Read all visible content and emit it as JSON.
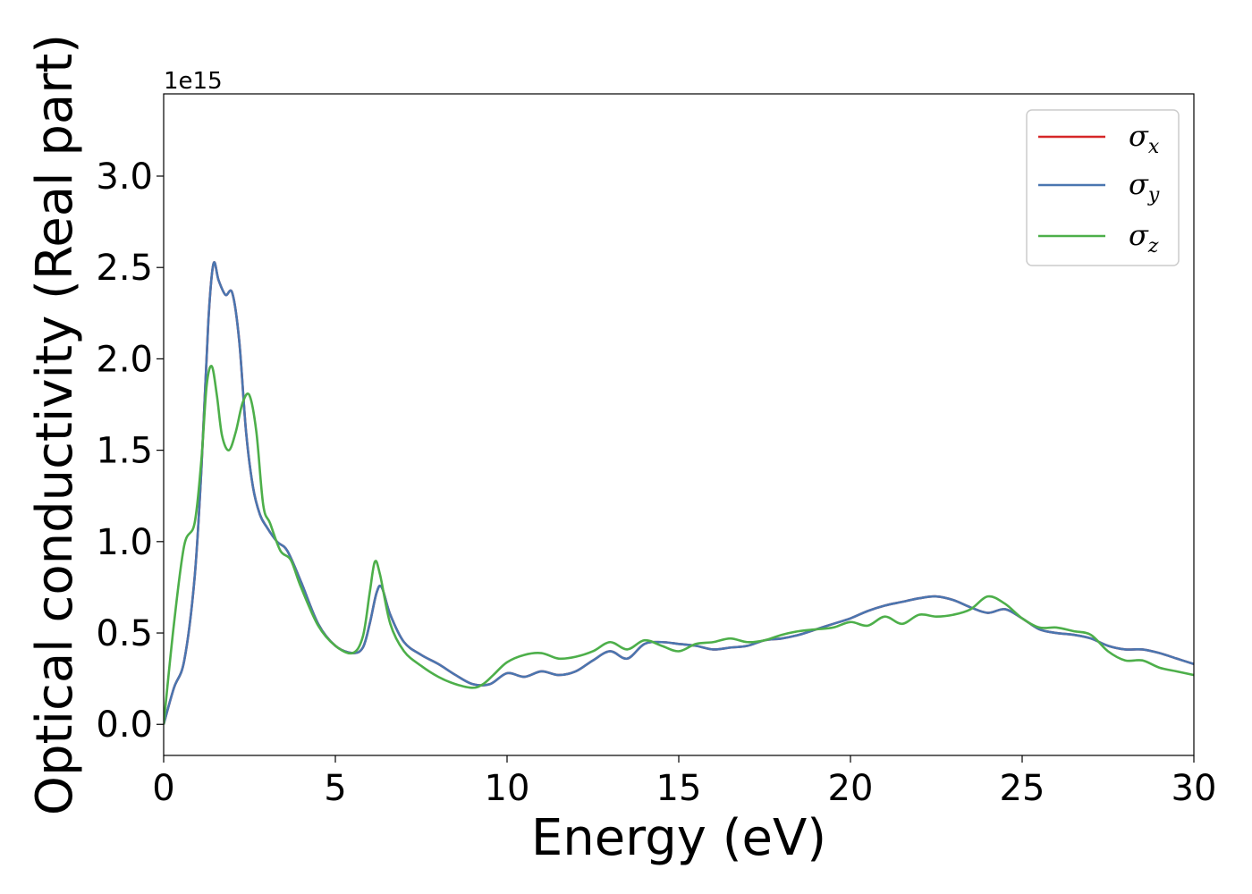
{
  "chart_data": {
    "type": "line",
    "title": "",
    "xlabel": "Energy (eV)",
    "ylabel": "Optical conductivity (Real part)",
    "offset_text": "1e15",
    "xlim": [
      0,
      30
    ],
    "ylim": [
      -0.17,
      3.45
    ],
    "x_ticks": [
      0,
      5,
      10,
      15,
      20,
      25,
      30
    ],
    "x_tick_labels": [
      "0",
      "5",
      "10",
      "15",
      "20",
      "25",
      "30"
    ],
    "y_ticks": [
      0.0,
      0.5,
      1.0,
      1.5,
      2.0,
      2.5,
      3.0
    ],
    "y_tick_labels": [
      "0.0",
      "0.5",
      "1.0",
      "1.5",
      "2.0",
      "2.5",
      "3.0"
    ],
    "grid": false,
    "legend": {
      "position": "top-right"
    },
    "series": [
      {
        "name": "σ",
        "subscript": "x",
        "color": "#d62728",
        "x": [
          0,
          0.3,
          0.6,
          0.9,
          1.1,
          1.3,
          1.45,
          1.6,
          1.8,
          2.0,
          2.2,
          2.4,
          2.6,
          2.8,
          3.0,
          3.3,
          3.6,
          4.0,
          4.5,
          5.0,
          5.5,
          5.8,
          6.0,
          6.2,
          6.35,
          6.6,
          7.0,
          7.5,
          8.0,
          8.5,
          9.0,
          9.5,
          10.0,
          10.5,
          11.0,
          11.5,
          12.0,
          12.5,
          13.0,
          13.5,
          14.0,
          14.5,
          15.0,
          15.5,
          16.0,
          16.5,
          17.0,
          17.5,
          18.0,
          18.5,
          19.0,
          19.5,
          20.0,
          20.5,
          21.0,
          21.5,
          22.0,
          22.5,
          23.0,
          23.5,
          24.0,
          24.5,
          25.0,
          25.5,
          26.0,
          26.5,
          27.0,
          27.5,
          28.0,
          28.5,
          29.0,
          29.5,
          30.0
        ],
        "y": [
          0.0,
          0.2,
          0.35,
          0.8,
          1.4,
          2.2,
          2.52,
          2.43,
          2.35,
          2.36,
          2.1,
          1.6,
          1.3,
          1.15,
          1.08,
          1.0,
          0.95,
          0.78,
          0.55,
          0.43,
          0.39,
          0.42,
          0.55,
          0.72,
          0.75,
          0.6,
          0.45,
          0.38,
          0.33,
          0.27,
          0.22,
          0.22,
          0.28,
          0.26,
          0.29,
          0.27,
          0.29,
          0.35,
          0.4,
          0.36,
          0.44,
          0.45,
          0.44,
          0.43,
          0.41,
          0.42,
          0.43,
          0.46,
          0.47,
          0.49,
          0.52,
          0.55,
          0.58,
          0.62,
          0.65,
          0.67,
          0.69,
          0.7,
          0.68,
          0.64,
          0.61,
          0.63,
          0.58,
          0.52,
          0.5,
          0.49,
          0.47,
          0.43,
          0.41,
          0.41,
          0.39,
          0.36,
          0.33
        ]
      },
      {
        "name": "σ",
        "subscript": "y",
        "color": "#4a76b0",
        "x": [
          0,
          0.3,
          0.6,
          0.9,
          1.1,
          1.3,
          1.45,
          1.6,
          1.8,
          2.0,
          2.2,
          2.4,
          2.6,
          2.8,
          3.0,
          3.3,
          3.6,
          4.0,
          4.5,
          5.0,
          5.5,
          5.8,
          6.0,
          6.2,
          6.35,
          6.6,
          7.0,
          7.5,
          8.0,
          8.5,
          9.0,
          9.5,
          10.0,
          10.5,
          11.0,
          11.5,
          12.0,
          12.5,
          13.0,
          13.5,
          14.0,
          14.5,
          15.0,
          15.5,
          16.0,
          16.5,
          17.0,
          17.5,
          18.0,
          18.5,
          19.0,
          19.5,
          20.0,
          20.5,
          21.0,
          21.5,
          22.0,
          22.5,
          23.0,
          23.5,
          24.0,
          24.5,
          25.0,
          25.5,
          26.0,
          26.5,
          27.0,
          27.5,
          28.0,
          28.5,
          29.0,
          29.5,
          30.0
        ],
        "y": [
          0.0,
          0.2,
          0.35,
          0.8,
          1.4,
          2.2,
          2.52,
          2.43,
          2.35,
          2.36,
          2.1,
          1.6,
          1.3,
          1.15,
          1.08,
          1.0,
          0.95,
          0.78,
          0.55,
          0.43,
          0.39,
          0.42,
          0.55,
          0.72,
          0.75,
          0.6,
          0.45,
          0.38,
          0.33,
          0.27,
          0.22,
          0.22,
          0.28,
          0.26,
          0.29,
          0.27,
          0.29,
          0.35,
          0.4,
          0.36,
          0.44,
          0.45,
          0.44,
          0.43,
          0.41,
          0.42,
          0.43,
          0.46,
          0.47,
          0.49,
          0.52,
          0.55,
          0.58,
          0.62,
          0.65,
          0.67,
          0.69,
          0.7,
          0.68,
          0.64,
          0.61,
          0.63,
          0.58,
          0.52,
          0.5,
          0.49,
          0.47,
          0.43,
          0.41,
          0.41,
          0.39,
          0.36,
          0.33
        ]
      },
      {
        "name": "σ",
        "subscript": "z",
        "color": "#4daf4a",
        "x": [
          0,
          0.3,
          0.6,
          0.9,
          1.1,
          1.25,
          1.4,
          1.55,
          1.7,
          1.9,
          2.1,
          2.3,
          2.5,
          2.7,
          2.9,
          3.1,
          3.4,
          3.7,
          4.0,
          4.5,
          5.0,
          5.5,
          5.8,
          6.0,
          6.15,
          6.3,
          6.6,
          7.0,
          7.5,
          8.0,
          8.5,
          9.0,
          9.3,
          9.6,
          10.0,
          10.5,
          11.0,
          11.5,
          12.0,
          12.5,
          13.0,
          13.5,
          14.0,
          14.5,
          15.0,
          15.5,
          16.0,
          16.5,
          17.0,
          17.5,
          18.0,
          18.5,
          19.0,
          19.5,
          20.0,
          20.5,
          21.0,
          21.5,
          22.0,
          22.5,
          23.0,
          23.5,
          24.0,
          24.5,
          25.0,
          25.5,
          26.0,
          26.5,
          27.0,
          27.5,
          28.0,
          28.5,
          29.0,
          29.5,
          30.0
        ],
        "y": [
          0.0,
          0.55,
          0.98,
          1.1,
          1.45,
          1.85,
          1.96,
          1.8,
          1.58,
          1.5,
          1.6,
          1.76,
          1.8,
          1.6,
          1.2,
          1.1,
          0.95,
          0.9,
          0.75,
          0.54,
          0.43,
          0.39,
          0.48,
          0.72,
          0.89,
          0.82,
          0.55,
          0.4,
          0.32,
          0.26,
          0.22,
          0.2,
          0.22,
          0.27,
          0.34,
          0.38,
          0.39,
          0.36,
          0.37,
          0.4,
          0.45,
          0.41,
          0.46,
          0.43,
          0.4,
          0.44,
          0.45,
          0.47,
          0.45,
          0.46,
          0.49,
          0.51,
          0.52,
          0.53,
          0.56,
          0.54,
          0.59,
          0.55,
          0.6,
          0.59,
          0.6,
          0.63,
          0.7,
          0.66,
          0.58,
          0.53,
          0.53,
          0.51,
          0.49,
          0.4,
          0.35,
          0.35,
          0.31,
          0.29,
          0.27
        ]
      }
    ]
  }
}
